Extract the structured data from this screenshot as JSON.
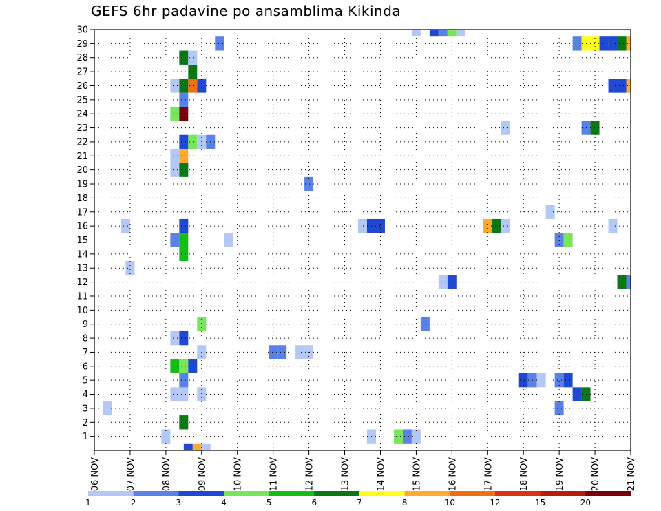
{
  "chart_data": {
    "type": "heatmap",
    "title": "GEFS 6hr padavine po ansamblima Kikinda",
    "xlabel": "",
    "ylabel": "",
    "x_tick_labels": [
      "06 NOV",
      "07 NOV",
      "08 NOV",
      "09 NOV",
      "10 NOV",
      "11 NOV",
      "12 NOV",
      "13 NOV",
      "14 NOV",
      "15 NOV",
      "16 NOV",
      "17 NOV",
      "18 NOV",
      "19 NOV",
      "20 NOV",
      "21 NOV"
    ],
    "x_unit": "6-hour steps",
    "xlim": [
      0,
      60
    ],
    "y_tick_labels": [
      "1",
      "2",
      "3",
      "4",
      "5",
      "6",
      "7",
      "8",
      "9",
      "10",
      "11",
      "12",
      "13",
      "14",
      "15",
      "16",
      "17",
      "18",
      "19",
      "20",
      "21",
      "22",
      "23",
      "24",
      "25",
      "26",
      "27",
      "28",
      "29",
      "30"
    ],
    "ylim": [
      0,
      30
    ],
    "grid": true,
    "colorbar": {
      "labels": [
        "1",
        "2",
        "3",
        "4",
        "5",
        "6",
        "7",
        "8",
        "10",
        "12",
        "15",
        "20"
      ],
      "colors": [
        "#b4c8f5",
        "#5a82e6",
        "#1f49d2",
        "#78e65a",
        "#14be14",
        "#0a7814",
        "#ffff1e",
        "#ffaa32",
        "#f06e14",
        "#dc3214",
        "#b41e0a",
        "#78000a"
      ]
    },
    "cells": [
      {
        "x": 10.5,
        "y": 0,
        "c": 2
      },
      {
        "x": 11.5,
        "y": 0,
        "c": 7
      },
      {
        "x": 12.5,
        "y": 0,
        "c": 0
      },
      {
        "x": 8,
        "y": 1,
        "c": 0
      },
      {
        "x": 31,
        "y": 1,
        "c": 0
      },
      {
        "x": 34,
        "y": 1,
        "c": 3
      },
      {
        "x": 35,
        "y": 1,
        "c": 1
      },
      {
        "x": 36,
        "y": 1,
        "c": 0
      },
      {
        "x": 10,
        "y": 2,
        "c": 5
      },
      {
        "x": 1.5,
        "y": 3,
        "c": 0
      },
      {
        "x": 52,
        "y": 3,
        "c": 1
      },
      {
        "x": 9,
        "y": 4,
        "c": 0
      },
      {
        "x": 10,
        "y": 4,
        "c": 0
      },
      {
        "x": 12,
        "y": 4,
        "c": 0
      },
      {
        "x": 54,
        "y": 4,
        "c": 2
      },
      {
        "x": 55,
        "y": 4,
        "c": 5
      },
      {
        "x": 10,
        "y": 5,
        "c": 1
      },
      {
        "x": 48,
        "y": 5,
        "c": 2
      },
      {
        "x": 49,
        "y": 5,
        "c": 1
      },
      {
        "x": 50,
        "y": 5,
        "c": 0
      },
      {
        "x": 52,
        "y": 5,
        "c": 1
      },
      {
        "x": 53,
        "y": 5,
        "c": 2
      },
      {
        "x": 9,
        "y": 6,
        "c": 4
      },
      {
        "x": 10,
        "y": 6,
        "c": 3
      },
      {
        "x": 11,
        "y": 6,
        "c": 2
      },
      {
        "x": 12,
        "y": 7,
        "c": 0
      },
      {
        "x": 20,
        "y": 7,
        "c": 1
      },
      {
        "x": 21,
        "y": 7,
        "c": 1
      },
      {
        "x": 23,
        "y": 7,
        "c": 0
      },
      {
        "x": 24,
        "y": 7,
        "c": 0
      },
      {
        "x": 9,
        "y": 8,
        "c": 0
      },
      {
        "x": 10,
        "y": 8,
        "c": 2
      },
      {
        "x": 12,
        "y": 9,
        "c": 3
      },
      {
        "x": 37,
        "y": 9,
        "c": 1
      },
      {
        "x": 39,
        "y": 12,
        "c": 0
      },
      {
        "x": 40,
        "y": 12,
        "c": 2
      },
      {
        "x": 59,
        "y": 12,
        "c": 5
      },
      {
        "x": 60,
        "y": 12,
        "c": 1
      },
      {
        "x": 4,
        "y": 13,
        "c": 0
      },
      {
        "x": 10,
        "y": 14,
        "c": 4
      },
      {
        "x": 9,
        "y": 15,
        "c": 1
      },
      {
        "x": 10,
        "y": 15,
        "c": 4
      },
      {
        "x": 15,
        "y": 15,
        "c": 0
      },
      {
        "x": 52,
        "y": 15,
        "c": 1
      },
      {
        "x": 53,
        "y": 15,
        "c": 3
      },
      {
        "x": 3.5,
        "y": 16,
        "c": 0
      },
      {
        "x": 10,
        "y": 16,
        "c": 2
      },
      {
        "x": 30,
        "y": 16,
        "c": 0
      },
      {
        "x": 31,
        "y": 16,
        "c": 2
      },
      {
        "x": 32,
        "y": 16,
        "c": 2
      },
      {
        "x": 44,
        "y": 16,
        "c": 7
      },
      {
        "x": 45,
        "y": 16,
        "c": 5
      },
      {
        "x": 46,
        "y": 16,
        "c": 0
      },
      {
        "x": 58,
        "y": 16,
        "c": 0
      },
      {
        "x": 51,
        "y": 17,
        "c": 0
      },
      {
        "x": 24,
        "y": 19,
        "c": 1
      },
      {
        "x": 9,
        "y": 20,
        "c": 0
      },
      {
        "x": 10,
        "y": 20,
        "c": 5
      },
      {
        "x": 9,
        "y": 21,
        "c": 0
      },
      {
        "x": 10,
        "y": 21,
        "c": 7
      },
      {
        "x": 10,
        "y": 22,
        "c": 2
      },
      {
        "x": 11,
        "y": 22,
        "c": 3
      },
      {
        "x": 12,
        "y": 22,
        "c": 0
      },
      {
        "x": 13,
        "y": 22,
        "c": 1
      },
      {
        "x": 55,
        "y": 23,
        "c": 1
      },
      {
        "x": 56,
        "y": 23,
        "c": 5
      },
      {
        "x": 46,
        "y": 23,
        "c": 0
      },
      {
        "x": 9,
        "y": 24,
        "c": 3
      },
      {
        "x": 10,
        "y": 24,
        "c": 11
      },
      {
        "x": 10,
        "y": 25,
        "c": 1
      },
      {
        "x": 9,
        "y": 26,
        "c": 0
      },
      {
        "x": 10,
        "y": 26,
        "c": 5
      },
      {
        "x": 11,
        "y": 26,
        "c": 8
      },
      {
        "x": 12,
        "y": 26,
        "c": 2
      },
      {
        "x": 58,
        "y": 26,
        "c": 2
      },
      {
        "x": 59,
        "y": 26,
        "c": 2
      },
      {
        "x": 60,
        "y": 26,
        "c": 7
      },
      {
        "x": 11,
        "y": 27,
        "c": 5
      },
      {
        "x": 10,
        "y": 28,
        "c": 5
      },
      {
        "x": 11,
        "y": 28,
        "c": 0
      },
      {
        "x": 14,
        "y": 29,
        "c": 1
      },
      {
        "x": 54,
        "y": 29,
        "c": 1
      },
      {
        "x": 55,
        "y": 29,
        "c": 6
      },
      {
        "x": 56,
        "y": 29,
        "c": 6
      },
      {
        "x": 57,
        "y": 29,
        "c": 2
      },
      {
        "x": 58,
        "y": 29,
        "c": 2
      },
      {
        "x": 59,
        "y": 29,
        "c": 5
      },
      {
        "x": 60,
        "y": 29,
        "c": 7
      },
      {
        "x": 36,
        "y": 30,
        "c": 0
      },
      {
        "x": 38,
        "y": 30,
        "c": 2
      },
      {
        "x": 39,
        "y": 30,
        "c": 1
      },
      {
        "x": 40,
        "y": 30,
        "c": 3
      },
      {
        "x": 41,
        "y": 30,
        "c": 0
      }
    ]
  }
}
